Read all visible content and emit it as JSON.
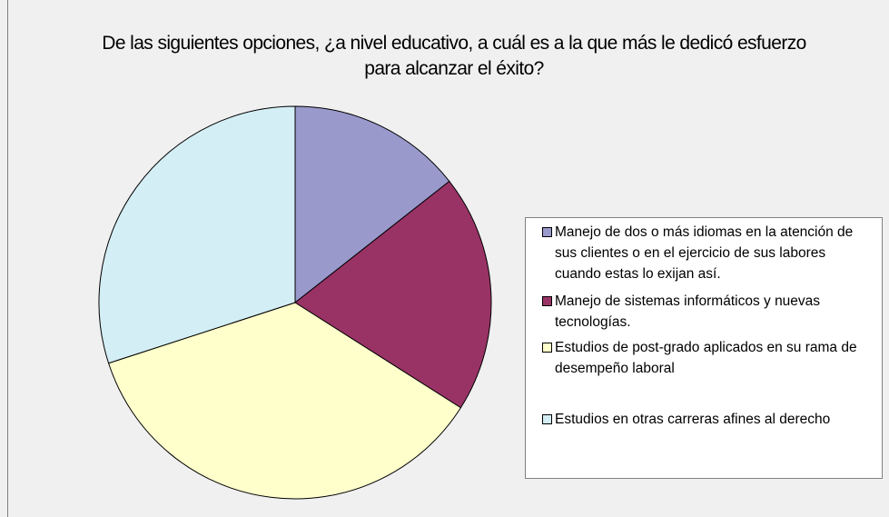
{
  "chart_data": {
    "type": "pie",
    "title": "De las siguientes opciones, ¿a nivel educativo, a cuál es a la que más le dedicó esfuerzo para alcanzar el éxito?",
    "categories": [
      "Manejo de dos o más idiomas en la atención de sus clientes o en el ejercicio de sus labores cuando estas lo exijan así.",
      "Manejo de sistemas informáticos y nuevas tecnologías.",
      "Estudios de post-grado aplicados en su rama de desempeño laboral",
      "Estudios en otras carreras afines al derecho"
    ],
    "values": [
      14.4,
      19.6,
      36,
      30
    ],
    "colors": [
      "#9999cc",
      "#993366",
      "#ffffcc",
      "#d3eef4"
    ],
    "legend": "right"
  }
}
